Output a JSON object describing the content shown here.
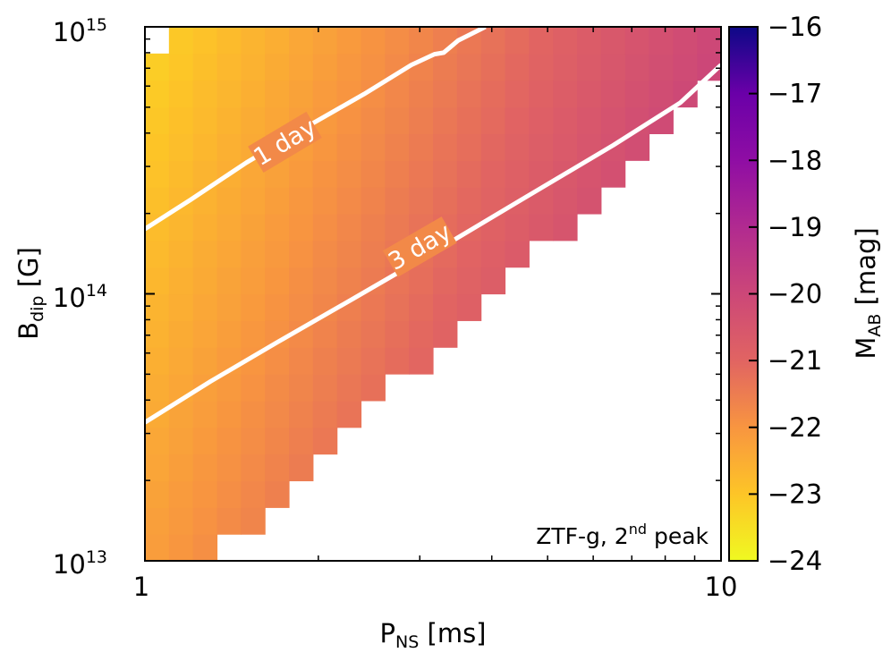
{
  "chart_data": {
    "type": "heatmap",
    "xlabel": {
      "main": "P",
      "sub": "NS",
      "unit": " [ms]"
    },
    "ylabel": {
      "main": "B",
      "sub": "dip",
      "unit": " [G]"
    },
    "x_scale": "log",
    "y_scale": "log",
    "xlim": [
      1,
      10
    ],
    "ylim": [
      10000000000000.0,
      1000000000000000.0
    ],
    "x_ticks": [
      {
        "value": 1,
        "label": "1"
      },
      {
        "value": 10,
        "label": "10"
      }
    ],
    "y_ticks": [
      {
        "value": 10000000000000.0,
        "base": "10",
        "exp": "13"
      },
      {
        "value": 100000000000000.0,
        "base": "10",
        "exp": "14"
      },
      {
        "value": 1000000000000000.0,
        "base": "10",
        "exp": "15"
      }
    ],
    "grid": false,
    "color_quantity": "M_AB (peak magnitude)",
    "colorbar": {
      "label_main": "M",
      "label_sub": "AB",
      "label_unit": " [mag]",
      "range": [
        -24,
        -16
      ],
      "tick_values": [
        -16,
        -17,
        -18,
        -19,
        -20,
        -21,
        -22,
        -23,
        -24
      ],
      "tick_labels": [
        "−16",
        "−17",
        "−18",
        "−19",
        "−20",
        "−21",
        "−22",
        "−23",
        "−24"
      ],
      "colormap": "plasma"
    },
    "grid_cells": {
      "nx": 24,
      "ny": 20
    },
    "magnitude_model": {
      "value_at_origin": -22.2,
      "slope_log_period": 3.3,
      "slope_log_field": -0.55
    },
    "detectable_region": {
      "boundary_period_ms": [
        1.3,
        10
      ],
      "boundary_field_G": [
        10000000000000.0,
        630000000000000.0
      ],
      "missing_cell": {
        "period_ms": 1.03,
        "field_G": 970000000000000.0
      }
    },
    "contours": [
      {
        "label": "1 day",
        "period_ms": [
          1.0,
          1.2,
          1.5,
          1.9,
          2.4,
          2.9,
          3.18,
          3.3,
          3.5,
          3.9
        ],
        "field_G": [
          175000000000000.0,
          225000000000000.0,
          310000000000000.0,
          420000000000000.0,
          560000000000000.0,
          720000000000000.0,
          790000000000000.0,
          800000000000000.0,
          890000000000000.0,
          1000000000000000.0
        ],
        "label_at": {
          "period_ms": 1.75,
          "field_G": 370000000000000.0
        }
      },
      {
        "label": "3 day",
        "period_ms": [
          1.0,
          1.3,
          1.7,
          2.3,
          3.2,
          4.5,
          6.5,
          8.5,
          10.0
        ],
        "field_G": [
          33000000000000.0,
          47000000000000.0,
          66000000000000.0,
          96000000000000.0,
          145000000000000.0,
          225000000000000.0,
          360000000000000.0,
          520000000000000.0,
          720000000000000.0
        ],
        "label_at": {
          "period_ms": 3.0,
          "field_G": 150000000000000.0
        }
      }
    ],
    "annotation": {
      "text": "ZTF-g, 2",
      "sup": "nd",
      "suffix": " peak"
    }
  }
}
